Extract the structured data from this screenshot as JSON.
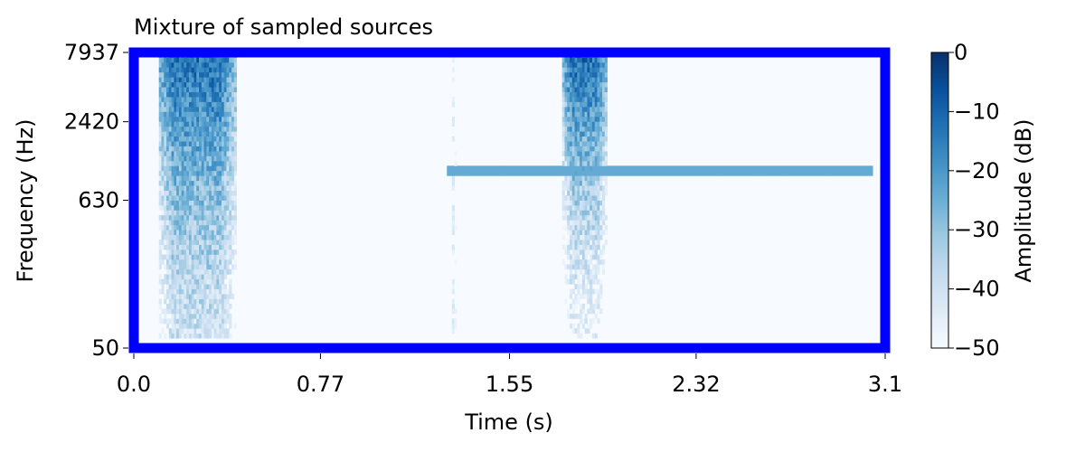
{
  "chart_data": {
    "type": "heatmap",
    "title": "Mixture of sampled sources",
    "xlabel": "Time (s)",
    "ylabel": "Frequency (Hz)",
    "colorbar_label": "Amplitude (dB)",
    "colormap": "Blues",
    "frame_color": "#0000ff",
    "xlim": [
      0.0,
      3.1
    ],
    "ylim_hz": [
      50,
      7937
    ],
    "y_scale": "log",
    "x_ticks": [
      "0.0",
      "0.77",
      "1.55",
      "2.32",
      "3.1"
    ],
    "x_tick_values": [
      0.0,
      0.77,
      1.55,
      2.32,
      3.1
    ],
    "y_ticks": [
      "50",
      "630",
      "2420",
      "7937"
    ],
    "y_tick_values": [
      50,
      630,
      2420,
      7937
    ],
    "colorbar_ticks": [
      "0",
      "−10",
      "−20",
      "−30",
      "−40",
      "−50"
    ],
    "colorbar_tick_values": [
      0,
      -10,
      -20,
      -30,
      -40,
      -50
    ],
    "clim_db": [
      -50,
      0
    ],
    "background_db": -50,
    "events": [
      {
        "kind": "broadband",
        "t_start": 0.1,
        "t_end": 0.42,
        "f_low": 60,
        "f_high": 7937,
        "level_high_db": -4,
        "level_low_db": -32
      },
      {
        "kind": "click",
        "t_start": 1.31,
        "t_end": 1.33,
        "f_low": 60,
        "f_high": 7937,
        "level_high_db": -42,
        "level_low_db": -40
      },
      {
        "kind": "broadband",
        "t_start": 1.77,
        "t_end": 1.95,
        "f_low": 60,
        "f_high": 7937,
        "level_high_db": -3,
        "level_low_db": -40
      },
      {
        "kind": "tone",
        "t_start": 1.29,
        "t_end": 3.05,
        "freq_hz": 1050,
        "level_db": -24
      }
    ]
  }
}
